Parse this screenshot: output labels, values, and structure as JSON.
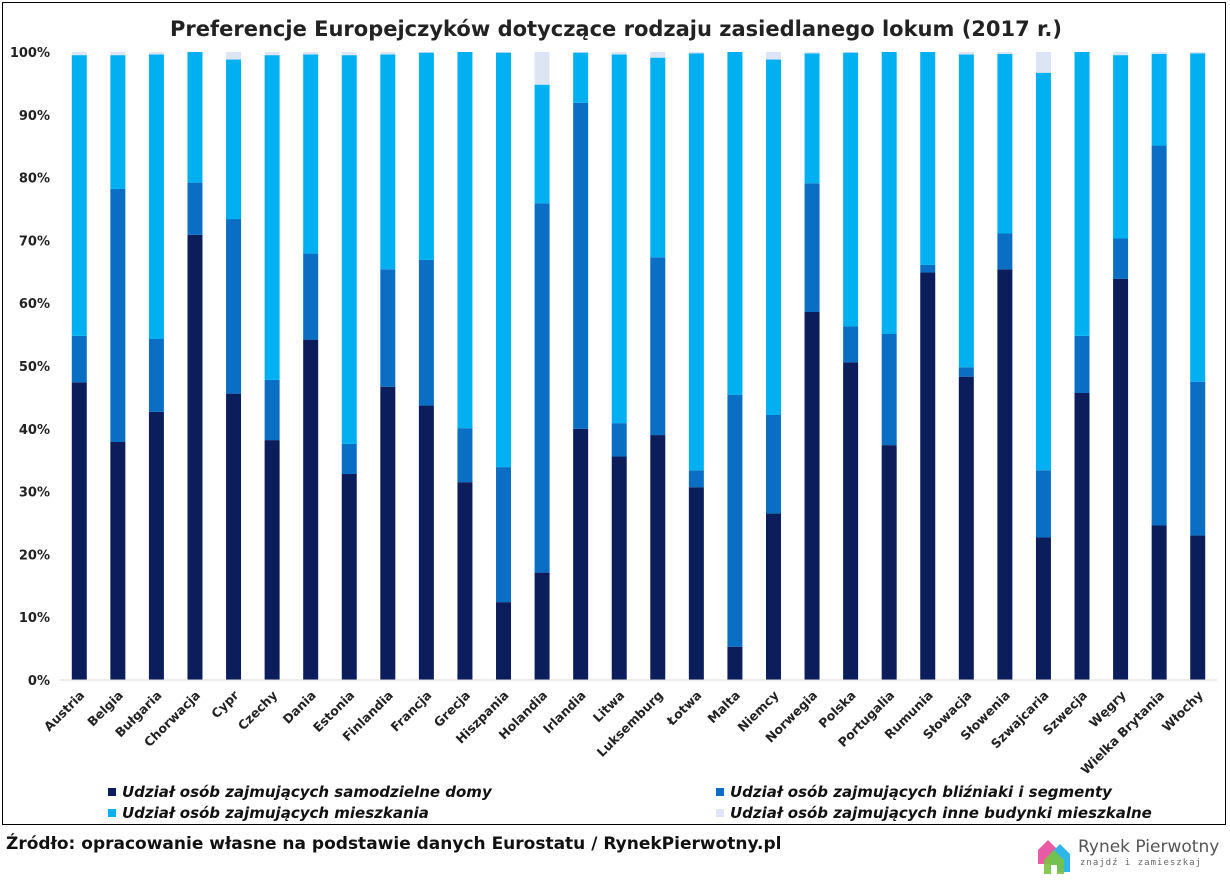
{
  "chart_data": {
    "type": "bar",
    "stacked": true,
    "title": "Preferencje Europejczyków dotyczące rodzaju zasiedlanego lokum (2017 r.)",
    "xlabel": "",
    "ylabel": "",
    "ylim": [
      0,
      100
    ],
    "yticks": [
      "0%",
      "10%",
      "20%",
      "30%",
      "40%",
      "50%",
      "60%",
      "70%",
      "80%",
      "90%",
      "100%"
    ],
    "grid": false,
    "legend_position": "bottom",
    "categories": [
      "Austria",
      "Belgia",
      "Bułgaria",
      "Chorwacja",
      "Cypr",
      "Czechy",
      "Dania",
      "Estonia",
      "Finlandia",
      "Francja",
      "Grecja",
      "Hiszpania",
      "Holandia",
      "Irlandia",
      "Litwa",
      "Luksemburg",
      "Łotwa",
      "Malta",
      "Niemcy",
      "Norwegia",
      "Polska",
      "Portugalia",
      "Rumunia",
      "Słowacja",
      "Słowenia",
      "Szwajcaria",
      "Szwecja",
      "Węgry",
      "Wielka Brytania",
      "Włochy"
    ],
    "series": [
      {
        "name": "Udział osób zajmujących samodzielne domy",
        "color": "#0c1d5c",
        "values": [
          47.4,
          37.9,
          42.7,
          70.9,
          45.6,
          38.2,
          54.2,
          32.8,
          46.7,
          43.7,
          31.5,
          12.4,
          17.1,
          40.0,
          35.6,
          39.0,
          30.7,
          5.3,
          26.5,
          58.6,
          50.6,
          37.4,
          64.9,
          48.3,
          65.4,
          22.7,
          45.7,
          63.9,
          24.6,
          23.0
        ]
      },
      {
        "name": "Udział osób zajmujących bliźniaki i segmenty",
        "color": "#0a6ec4",
        "values": [
          7.4,
          40.3,
          11.6,
          8.3,
          27.8,
          9.6,
          13.7,
          4.8,
          18.7,
          23.2,
          8.6,
          21.5,
          58.8,
          51.9,
          5.3,
          28.3,
          2.7,
          40.1,
          15.7,
          20.5,
          5.7,
          17.7,
          1.2,
          1.5,
          5.7,
          10.7,
          9.1,
          6.4,
          60.5,
          24.5
        ]
      },
      {
        "name": "Udział osób zajmujących mieszkania",
        "color": "#00b0f0",
        "values": [
          44.7,
          21.3,
          45.3,
          20.8,
          25.4,
          51.7,
          31.7,
          61.9,
          34.2,
          33.0,
          59.9,
          66.0,
          18.9,
          8.0,
          58.7,
          31.8,
          66.4,
          54.6,
          56.6,
          20.7,
          43.6,
          44.9,
          33.9,
          49.8,
          28.6,
          63.3,
          45.2,
          29.2,
          14.6,
          52.3
        ]
      },
      {
        "name": "Udział osób zajmujących inne budynki mieszkalne",
        "color": "#dde5f5",
        "values": [
          0.5,
          0.5,
          0.4,
          0.0,
          1.2,
          0.5,
          0.4,
          0.5,
          0.4,
          0.1,
          0.0,
          0.1,
          5.2,
          0.1,
          0.4,
          0.9,
          0.2,
          0.0,
          1.2,
          0.2,
          0.1,
          0.0,
          0.0,
          0.4,
          0.3,
          3.3,
          0.0,
          0.5,
          0.3,
          0.2
        ]
      }
    ]
  },
  "footer": {
    "source": "Źródło: opracowanie własne na podstawie danych Eurostatu / RynekPierwotny.pl"
  },
  "logo": {
    "name": "Rynek Pierwotny",
    "tagline": "znajdź i zamieszkaj"
  }
}
